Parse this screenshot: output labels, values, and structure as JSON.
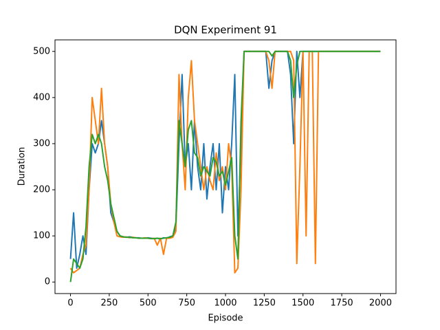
{
  "chart_data": {
    "type": "line",
    "title": "DQN Experiment 91",
    "xlabel": "Episode",
    "ylabel": "Duration",
    "x": [
      0,
      20,
      40,
      60,
      80,
      100,
      120,
      140,
      160,
      180,
      200,
      220,
      240,
      260,
      280,
      300,
      320,
      340,
      360,
      380,
      400,
      420,
      440,
      460,
      480,
      500,
      520,
      540,
      560,
      580,
      600,
      620,
      640,
      660,
      680,
      700,
      720,
      740,
      760,
      780,
      800,
      820,
      840,
      860,
      880,
      900,
      920,
      940,
      960,
      980,
      1000,
      1020,
      1040,
      1060,
      1080,
      1100,
      1120,
      1140,
      1160,
      1180,
      1200,
      1220,
      1240,
      1260,
      1280,
      1300,
      1320,
      1340,
      1360,
      1380,
      1400,
      1420,
      1440,
      1460,
      1480,
      1500,
      1520,
      1540,
      1560,
      1580,
      1600,
      1620,
      1640,
      1660,
      1680,
      1700,
      1720,
      1740,
      1760,
      1780,
      1800,
      1820,
      1840,
      1860,
      1880,
      1900,
      1920,
      1940,
      1960,
      1980,
      2000
    ],
    "series": [
      {
        "color": "#1f77b4",
        "values": [
          50,
          150,
          30,
          60,
          100,
          60,
          200,
          300,
          280,
          300,
          350,
          300,
          250,
          150,
          130,
          110,
          100,
          98,
          97,
          98,
          97,
          96,
          96,
          95,
          95,
          96,
          95,
          94,
          95,
          93,
          96,
          95,
          98,
          100,
          120,
          300,
          450,
          250,
          300,
          200,
          350,
          250,
          200,
          300,
          180,
          250,
          300,
          200,
          300,
          150,
          250,
          200,
          300,
          450,
          100,
          300,
          500,
          500,
          500,
          500,
          500,
          500,
          500,
          500,
          420,
          480,
          500,
          500,
          500,
          500,
          500,
          450,
          300,
          500,
          400,
          500,
          500,
          500,
          500,
          500,
          500,
          500,
          500,
          500,
          500,
          500,
          500,
          500,
          500,
          500,
          500,
          500,
          500,
          500,
          500,
          500,
          500,
          500,
          500,
          500,
          500
        ]
      },
      {
        "color": "#ff7f0e",
        "values": [
          30,
          20,
          25,
          30,
          60,
          80,
          200,
          400,
          350,
          300,
          420,
          300,
          250,
          170,
          130,
          100,
          98,
          97,
          98,
          96,
          97,
          96,
          95,
          95,
          96,
          95,
          94,
          95,
          80,
          95,
          60,
          95,
          95,
          97,
          110,
          450,
          300,
          200,
          400,
          480,
          350,
          300,
          250,
          200,
          250,
          220,
          200,
          280,
          220,
          250,
          200,
          300,
          250,
          20,
          30,
          200,
          500,
          500,
          500,
          500,
          500,
          500,
          500,
          500,
          480,
          420,
          500,
          500,
          500,
          500,
          500,
          500,
          480,
          40,
          250,
          500,
          100,
          500,
          500,
          40,
          500,
          500,
          500,
          500,
          500,
          500,
          500,
          500,
          500,
          500,
          500,
          500,
          500,
          500,
          500,
          500,
          500,
          500,
          500,
          500,
          500
        ]
      },
      {
        "color": "#2ca02c",
        "values": [
          0,
          50,
          40,
          30,
          50,
          120,
          250,
          320,
          300,
          320,
          300,
          250,
          220,
          170,
          140,
          110,
          100,
          98,
          97,
          97,
          96,
          96,
          95,
          95,
          95,
          95,
          94,
          94,
          95,
          94,
          95,
          96,
          97,
          100,
          130,
          350,
          300,
          250,
          330,
          350,
          280,
          270,
          230,
          250,
          240,
          230,
          270,
          260,
          230,
          240,
          210,
          240,
          270,
          100,
          50,
          350,
          500,
          500,
          500,
          500,
          500,
          500,
          500,
          500,
          500,
          490,
          500,
          500,
          500,
          500,
          500,
          480,
          400,
          470,
          500,
          500,
          500,
          500,
          500,
          500,
          500,
          500,
          500,
          500,
          500,
          500,
          500,
          500,
          500,
          500,
          500,
          500,
          500,
          500,
          500,
          500,
          500,
          500,
          500,
          500,
          500
        ]
      }
    ],
    "xlim": [
      -100,
      2100
    ],
    "ylim": [
      -25,
      525
    ],
    "xticks": [
      0,
      250,
      500,
      750,
      1000,
      1250,
      1500,
      1750,
      2000
    ],
    "yticks": [
      0,
      100,
      200,
      300,
      400,
      500
    ]
  }
}
